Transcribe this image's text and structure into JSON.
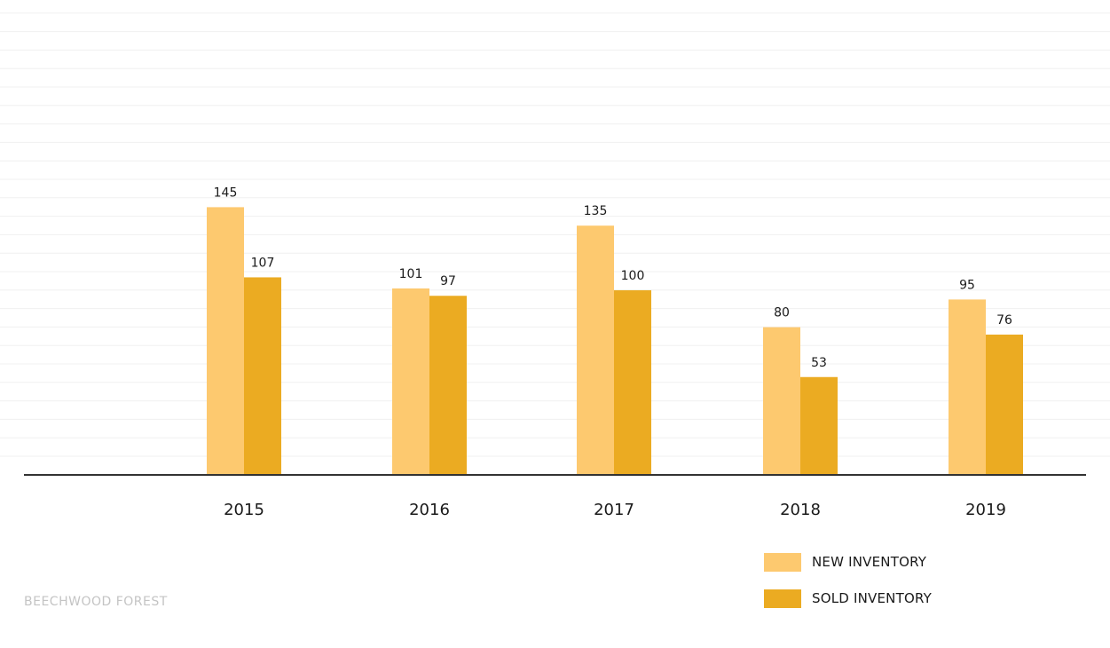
{
  "chart_data": {
    "type": "bar",
    "categories": [
      "2015",
      "2016",
      "2017",
      "2018",
      "2019"
    ],
    "series": [
      {
        "name": "NEW INVENTORY",
        "values": [
          145,
          101,
          135,
          80,
          95
        ],
        "color": "#FDC96F"
      },
      {
        "name": "SOLD INVENTORY",
        "values": [
          107,
          97,
          100,
          53,
          76
        ],
        "color": "#EBAB22"
      }
    ],
    "title": "",
    "xlabel": "",
    "ylabel": "",
    "ylim": [
      0,
      250
    ],
    "grid": true,
    "legend": "bottom-right"
  },
  "colors": {
    "axis": "#333333",
    "grid": "#f0f0f0",
    "text": "#1a1a1a",
    "watermark": "#c4c4c4"
  },
  "watermark": "BEECHWOOD FOREST"
}
